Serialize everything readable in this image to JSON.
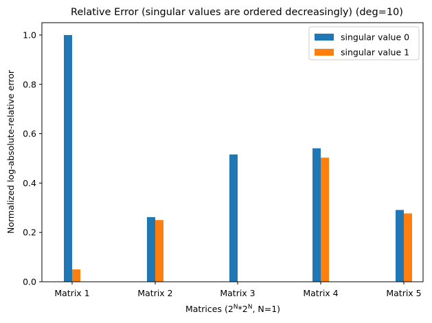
{
  "chart_data": {
    "type": "bar",
    "title": "Relative Error (singular values are ordered decreasingly) (deg=10)",
    "xlabel": {
      "prefix": "Matrices (2",
      "sup1": "N",
      "middle": "*2",
      "sup2": "N",
      "suffix": ", N=1)"
    },
    "ylabel": "Normalized log-absolute-relative error",
    "categories": [
      "Matrix 1",
      "Matrix 2",
      "Matrix 3",
      "Matrix 4",
      "Matrix 5"
    ],
    "series": [
      {
        "name": "singular value 0",
        "color": "#1f77b4",
        "values": [
          1.0,
          0.262,
          0.516,
          0.541,
          0.291
        ]
      },
      {
        "name": "singular value 1",
        "color": "#ff7f0e",
        "values": [
          0.05,
          0.25,
          0.0,
          0.503,
          0.277
        ]
      }
    ],
    "ylim": [
      0,
      1.05
    ],
    "yticks": [
      "0.0",
      "0.2",
      "0.4",
      "0.6",
      "0.8",
      "1.0"
    ],
    "grid": false,
    "legend_position": "top-right"
  }
}
